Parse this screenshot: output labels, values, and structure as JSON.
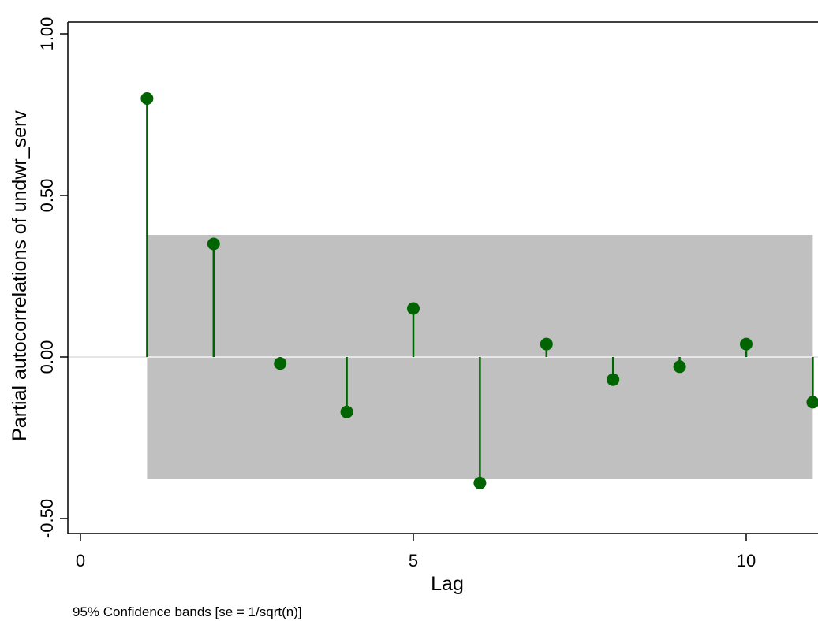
{
  "chart_data": {
    "type": "scatter",
    "subtype": "partial-autocorrelation-spikes",
    "xlabel": "Lag",
    "ylabel": "Partial autocorrelations of undwr_serv",
    "note": "95% Confidence bands [se = 1/sqrt(n)]",
    "xlim": [
      0,
      11
    ],
    "ylim": [
      -0.5,
      1.0
    ],
    "xticks": [
      0,
      5,
      10
    ],
    "xtick_labels": [
      "0",
      "5",
      "10"
    ],
    "yticks": [
      -0.5,
      0,
      0.5,
      1.0
    ],
    "ytick_labels": [
      "-0.50",
      "0.00",
      "0.50",
      "1.00"
    ],
    "grid": false,
    "legend": "none",
    "x": [
      1,
      2,
      3,
      4,
      5,
      6,
      7,
      8,
      9,
      10,
      11
    ],
    "values": [
      0.8,
      0.35,
      -0.02,
      -0.17,
      0.15,
      -0.39,
      0.04,
      -0.07,
      -0.03,
      0.04,
      -0.14
    ],
    "confidence_band": {
      "lower": -0.378,
      "upper": 0.378,
      "from_lag": 1,
      "to_lag": 11
    },
    "colors": {
      "marker": "#006400",
      "band": "#c0c0c0",
      "zero_line": "#e6e6e6",
      "axis": "#000000"
    }
  }
}
